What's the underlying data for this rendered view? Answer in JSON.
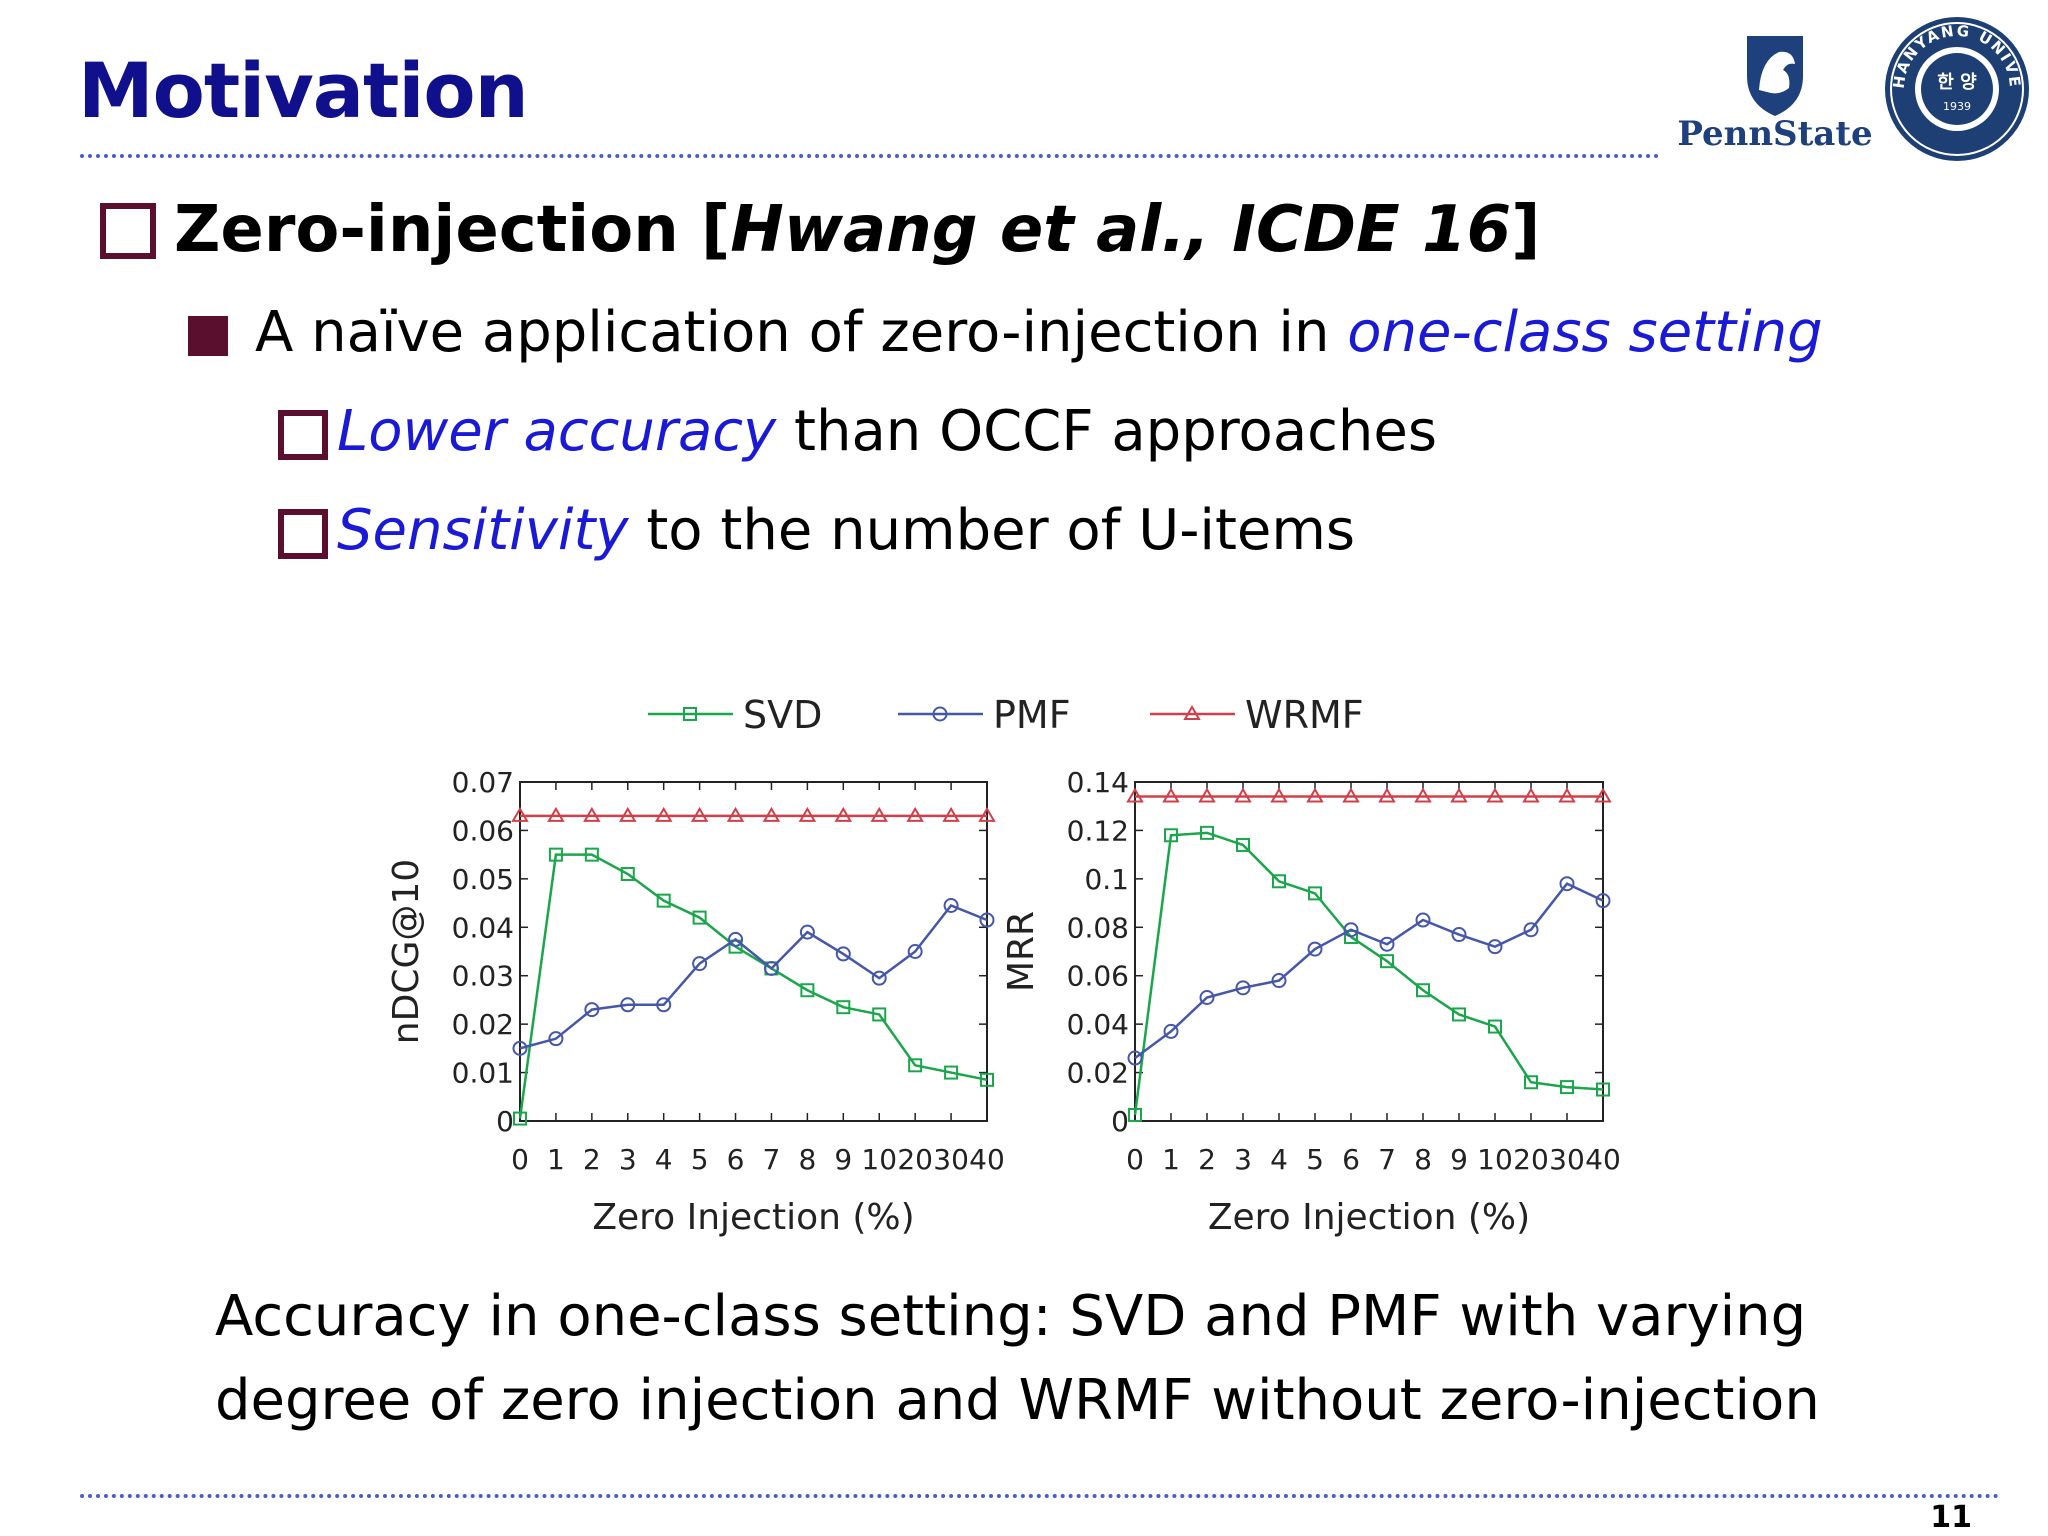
{
  "slide": {
    "title": "Motivation",
    "page_number": "11",
    "logos": {
      "pennstate_text": "PennState",
      "hanyang_text": "HANYANG UNIVERSITY",
      "hanyang_center": "한 양",
      "hanyang_year": "1939"
    },
    "bullet1": {
      "before": "Zero-injection [",
      "cite": "Hwang et al., ICDE 16",
      "after": "]"
    },
    "bullet2": {
      "before": "A naïve application of zero-injection in ",
      "highlight": "one-class setting"
    },
    "bullet3": {
      "highlight": "Lower accuracy",
      "after": " than OCCF approaches"
    },
    "bullet4": {
      "highlight": "Sensitivity",
      "after": " to the number of U-items"
    },
    "caption_line1": "Accuracy in one-class setting: SVD and PMF with varying",
    "caption_line2": "degree of zero injection and WRMF without zero-injection",
    "colors": {
      "title": "#10108c",
      "bullet": "#5a0f2e",
      "highlight": "#1a1ad6",
      "svd": "#1aa64a",
      "pmf": "#4557a8",
      "wrmf": "#d0404a"
    }
  },
  "chart_data": [
    {
      "type": "line",
      "categories": [
        "0",
        "1",
        "2",
        "3",
        "4",
        "5",
        "6",
        "7",
        "8",
        "9",
        "10",
        "20",
        "30",
        "40"
      ],
      "xlabel": "Zero Injection (%)",
      "ylabel": "nDCG@10",
      "ylim": [
        0,
        0.07
      ],
      "yticks": [
        "0",
        "0.01",
        "0.02",
        "0.03",
        "0.04",
        "0.05",
        "0.06",
        "0.07"
      ],
      "legend": "top",
      "series": [
        {
          "name": "SVD",
          "marker": "square",
          "values": [
            0.0005,
            0.055,
            0.055,
            0.051,
            0.0455,
            0.042,
            0.036,
            0.0315,
            0.027,
            0.0235,
            0.022,
            0.0115,
            0.01,
            0.0085
          ]
        },
        {
          "name": "PMF",
          "marker": "circle",
          "values": [
            0.015,
            0.017,
            0.023,
            0.024,
            0.024,
            0.0325,
            0.0375,
            0.0315,
            0.039,
            0.0345,
            0.0295,
            0.035,
            0.0445,
            0.0415
          ]
        },
        {
          "name": "WRMF",
          "marker": "triangle",
          "values": [
            0.063,
            0.063,
            0.063,
            0.063,
            0.063,
            0.063,
            0.063,
            0.063,
            0.063,
            0.063,
            0.063,
            0.063,
            0.063,
            0.063
          ]
        }
      ]
    },
    {
      "type": "line",
      "categories": [
        "0",
        "1",
        "2",
        "3",
        "4",
        "5",
        "6",
        "7",
        "8",
        "9",
        "10",
        "20",
        "30",
        "40"
      ],
      "xlabel": "Zero Injection (%)",
      "ylabel": "MRR",
      "ylim": [
        0,
        0.14
      ],
      "yticks": [
        "0",
        "0.02",
        "0.04",
        "0.06",
        "0.08",
        "0.1",
        "0.12",
        "0.14"
      ],
      "series": [
        {
          "name": "SVD",
          "marker": "square",
          "values": [
            0.0025,
            0.118,
            0.119,
            0.114,
            0.099,
            0.094,
            0.076,
            0.066,
            0.054,
            0.044,
            0.039,
            0.016,
            0.014,
            0.013
          ]
        },
        {
          "name": "PMF",
          "marker": "circle",
          "values": [
            0.026,
            0.037,
            0.051,
            0.055,
            0.058,
            0.071,
            0.079,
            0.073,
            0.083,
            0.077,
            0.072,
            0.079,
            0.098,
            0.091
          ]
        },
        {
          "name": "WRMF",
          "marker": "triangle",
          "values": [
            0.134,
            0.134,
            0.134,
            0.134,
            0.134,
            0.134,
            0.134,
            0.134,
            0.134,
            0.134,
            0.134,
            0.134,
            0.134,
            0.134
          ]
        }
      ]
    }
  ]
}
